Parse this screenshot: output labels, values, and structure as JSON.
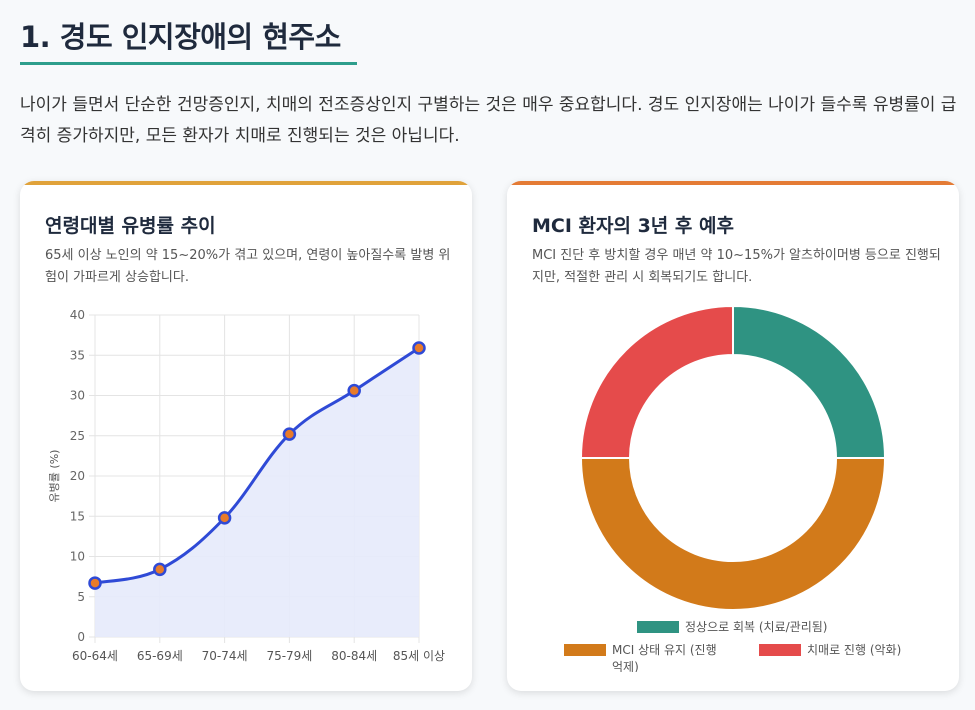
{
  "page": {
    "title": "1. 경도 인지장애의 현주소",
    "intro": "나이가 들면서 단순한 건망증인지, 치매의 전조증상인지 구별하는 것은 매우 중요합니다. 경도 인지장애는 나이가 들수록 유병률이 급격히 증가하지만, 모든 환자가 치매로 진행되는 것은 아닙니다."
  },
  "colors": {
    "accent": "#2e9e8c",
    "left_bar": "#e0a23a",
    "right_bar": "#e47b35"
  },
  "cards": {
    "left": {
      "title": "연령대별 유병률 추이",
      "description": "65세 이상 노인의 약 15~20%가 겪고 있으며, 연령이 높아질수록 발병 위험이 가파르게 상승합니다."
    },
    "right": {
      "title": "MCI 환자의 3년 후 예후",
      "description": "MCI 진단 후 방치할 경우 매년 약 10~15%가 알츠하이머병 등으로 진행되지만, 적절한 관리 시 회복되기도 합니다."
    }
  },
  "chart_data": [
    {
      "type": "line",
      "title": "",
      "categories": [
        "60-64세",
        "65-69세",
        "70-74세",
        "75-79세",
        "80-84세",
        "85세 이상"
      ],
      "values": [
        6.7,
        8.4,
        14.8,
        25.2,
        30.6,
        35.9
      ],
      "ylabel": "유병률 (%)",
      "xlabel": "",
      "ylim": [
        0,
        40
      ],
      "yticks": [
        0,
        5,
        10,
        15,
        20,
        25,
        30,
        35,
        40
      ],
      "grid": true,
      "line_color": "#2f4ad6",
      "fill_color": "#e6eafb",
      "point_color": "#e87b2a"
    },
    {
      "type": "pie",
      "donut": true,
      "labels": [
        "정상으로 회복 (치료/관리됨)",
        "MCI 상태 유지 (진행 억제)",
        "치매로 진행 (악화)"
      ],
      "values": [
        25,
        50,
        25
      ],
      "colors": [
        "#2f9382",
        "#d27a1a",
        "#e54b4b"
      ],
      "legend": "bottom"
    }
  ]
}
